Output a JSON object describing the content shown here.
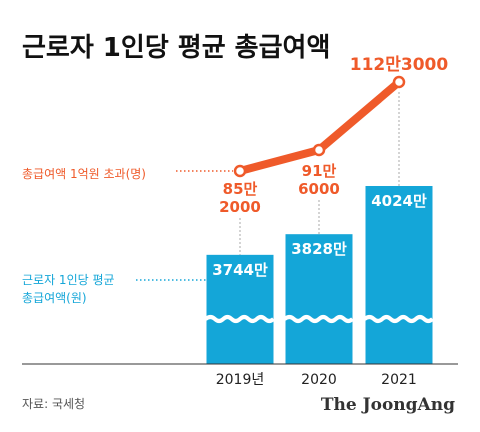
{
  "title": "근로자 1인당 평균 총급여액",
  "colors": {
    "bar": "#14a6d8",
    "line": "#ef5a2a",
    "wave": "#ffffff",
    "dotted": "#aaaaaa",
    "axis": "#333333"
  },
  "legend": {
    "line_label": "총급여액 1억원 초과(명)",
    "bar_label_1": "근로자 1인당 평균",
    "bar_label_2": "총급여액(원)"
  },
  "source": "자료: 국세청",
  "brand": "The JoongAng",
  "chart_data": {
    "type": "bar",
    "categories": [
      "2019년",
      "2020",
      "2021"
    ],
    "series": [
      {
        "name": "근로자 1인당 평균 총급여액(원)",
        "type": "bar",
        "values": [
          37440000,
          38280000,
          40240000
        ],
        "labels": [
          "3744만",
          "3828만",
          "4024만"
        ]
      },
      {
        "name": "총급여액 1억원 초과(명)",
        "type": "line",
        "values": [
          852000,
          916000,
          1123000
        ],
        "labels": [
          [
            "85만",
            "2000"
          ],
          [
            "91만",
            "6000"
          ],
          [
            "112만3000"
          ]
        ]
      }
    ],
    "axis_break": true
  }
}
